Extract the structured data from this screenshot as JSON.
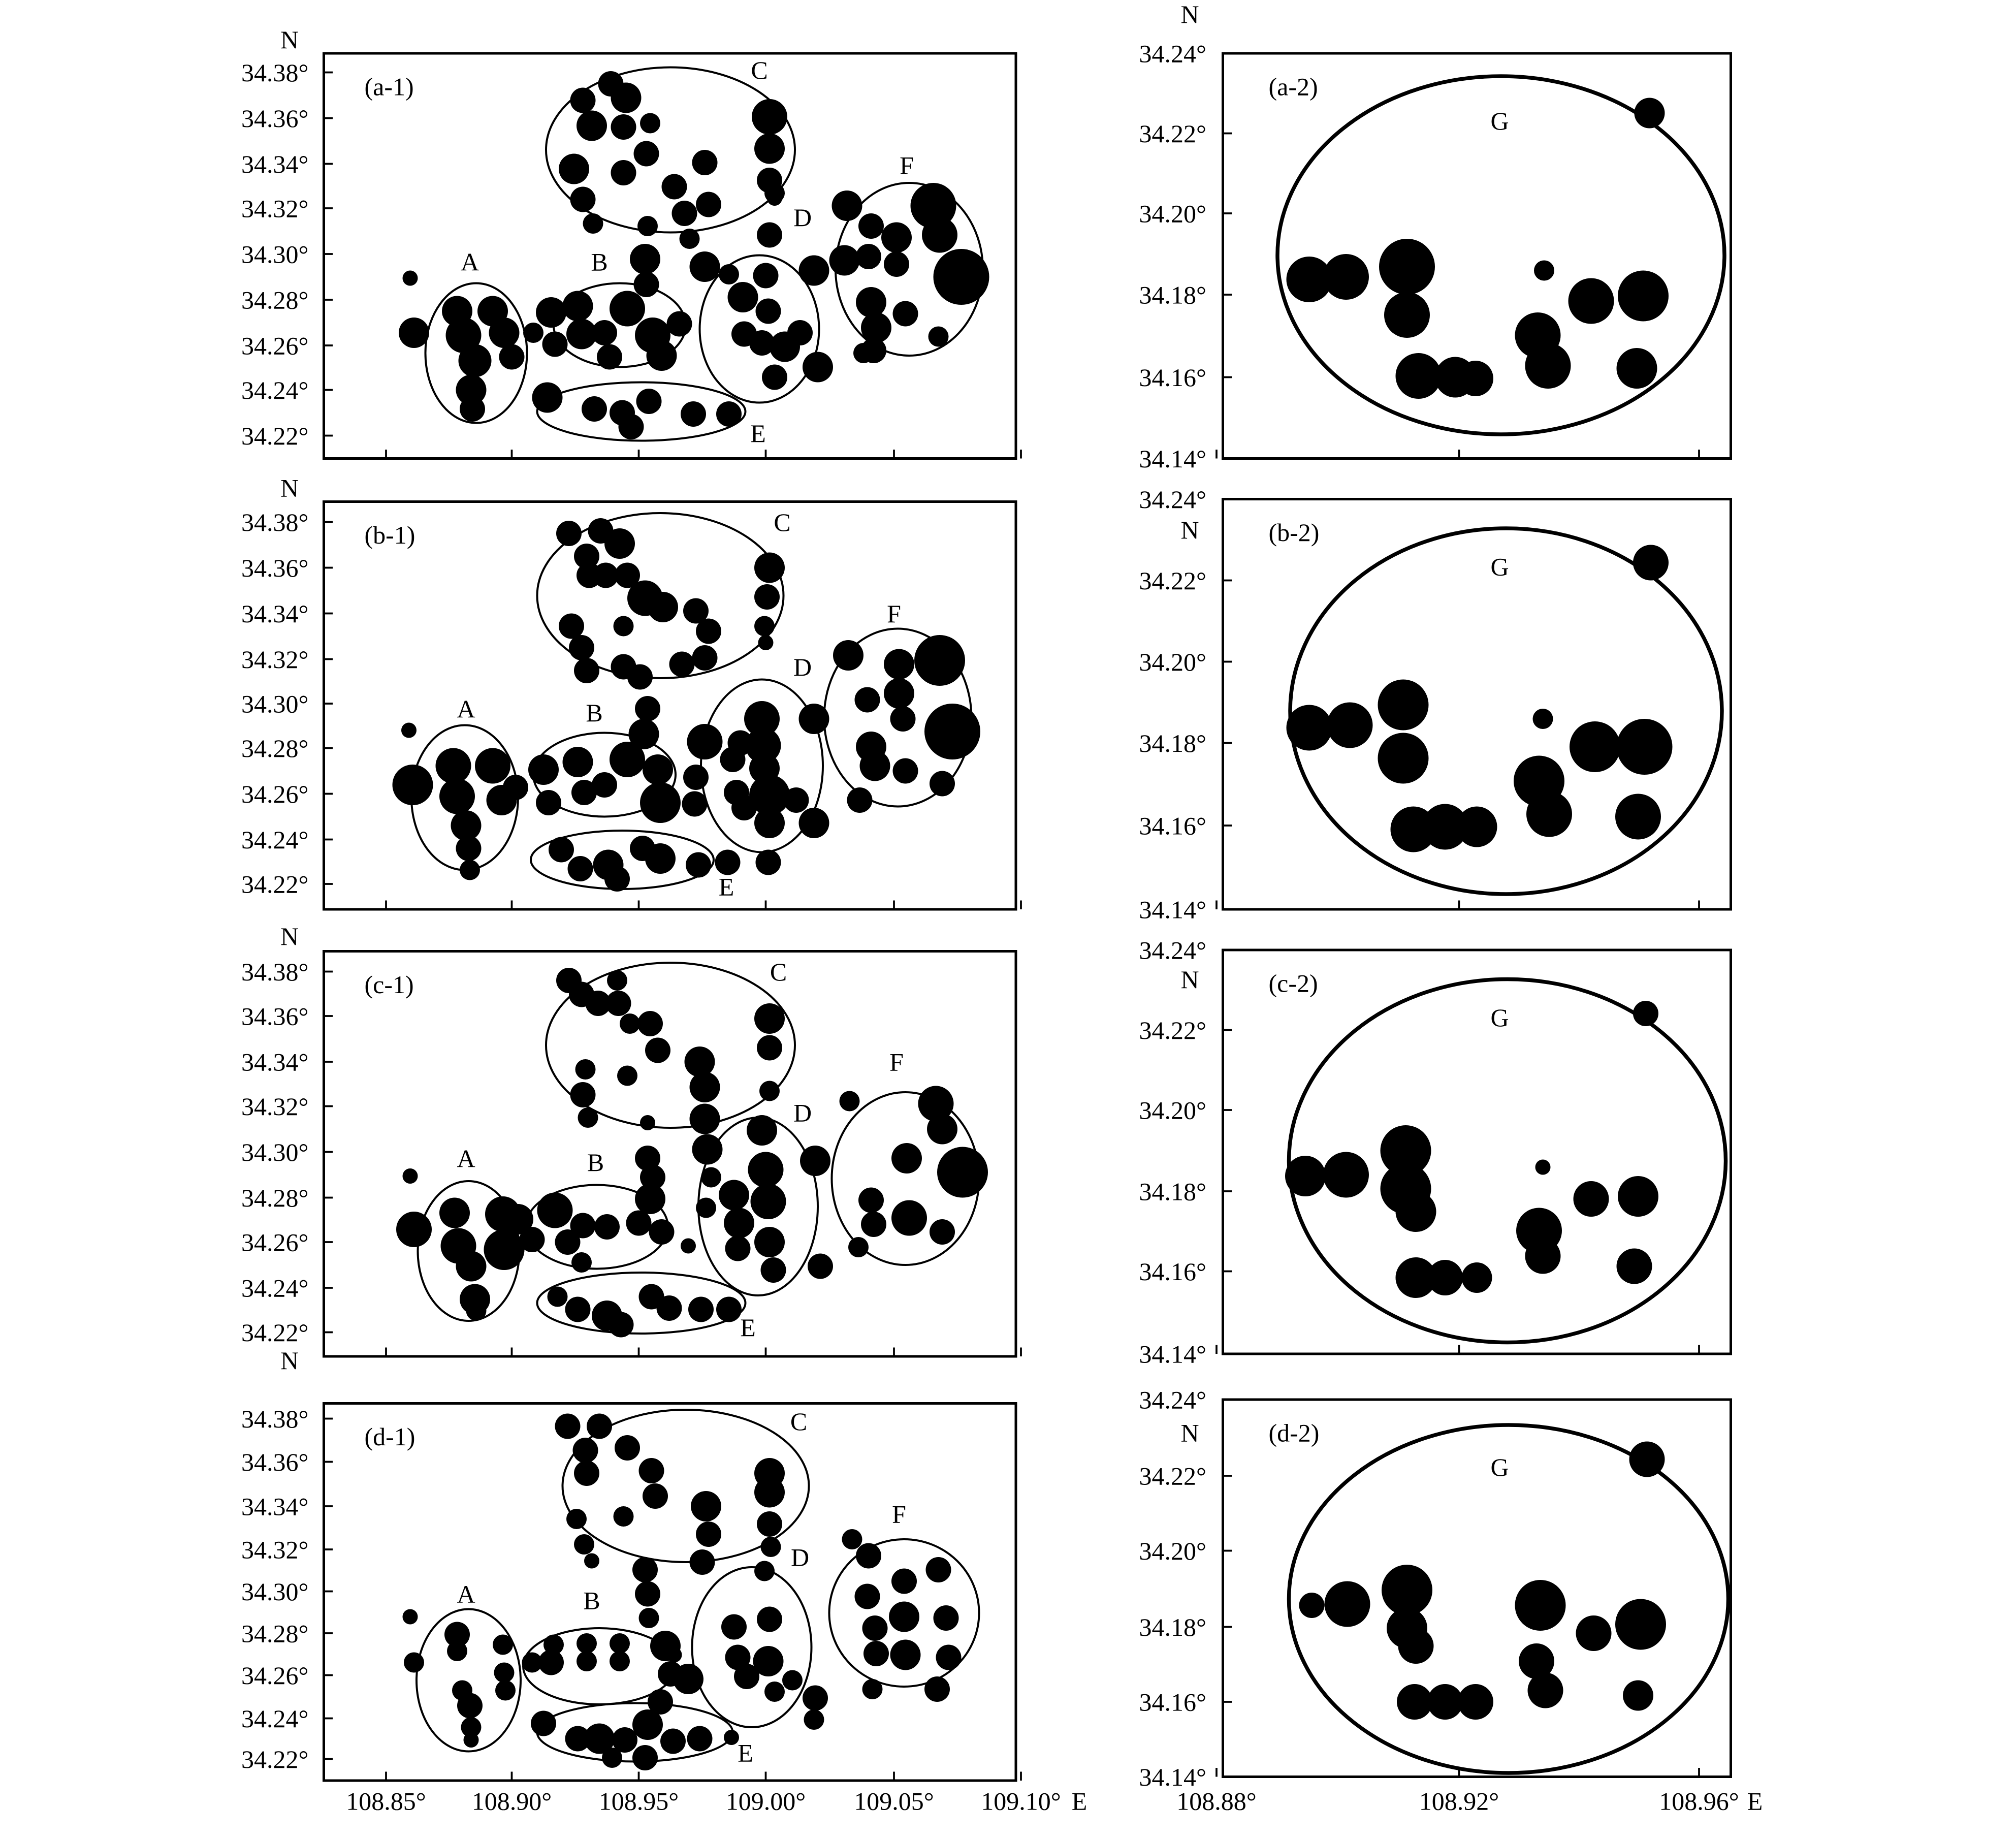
{
  "north_label": "N",
  "east_label": "E",
  "colors": {
    "ink": "#000000",
    "paper": "#ffffff"
  },
  "left_axis": {
    "y_ticks": [
      "34.38°",
      "34.36°",
      "34.34°",
      "34.32°",
      "34.30°",
      "34.28°",
      "34.26°",
      "34.24°",
      "34.22°"
    ],
    "x_ticks": [
      "108.85°",
      "108.90°",
      "108.95°",
      "109.00°",
      "109.05°",
      "109.10°"
    ]
  },
  "right_axis": {
    "y_ticks": [
      "34.24°",
      "34.22°",
      "34.20°",
      "34.18°",
      "34.16°",
      "34.14°"
    ],
    "x_ticks": [
      "108.88°",
      "108.92°",
      "108.96°"
    ]
  },
  "panels_left": [
    {
      "label": "(a-1)",
      "zones": [
        "A",
        "B",
        "C",
        "D",
        "E",
        "F"
      ]
    },
    {
      "label": "(b-1)",
      "zones": [
        "A",
        "B",
        "C",
        "D",
        "E",
        "F"
      ]
    },
    {
      "label": "(c-1)",
      "zones": [
        "A",
        "B",
        "C",
        "D",
        "E",
        "F"
      ]
    },
    {
      "label": "(d-1)",
      "zones": [
        "A",
        "B",
        "C",
        "D",
        "E",
        "F"
      ]
    }
  ],
  "panels_right": [
    {
      "label": "(a-2)",
      "zone": "G"
    },
    {
      "label": "(b-2)",
      "zone": "G"
    },
    {
      "label": "(c-2)",
      "zone": "G"
    },
    {
      "label": "(d-2)",
      "zone": "G"
    }
  ]
}
